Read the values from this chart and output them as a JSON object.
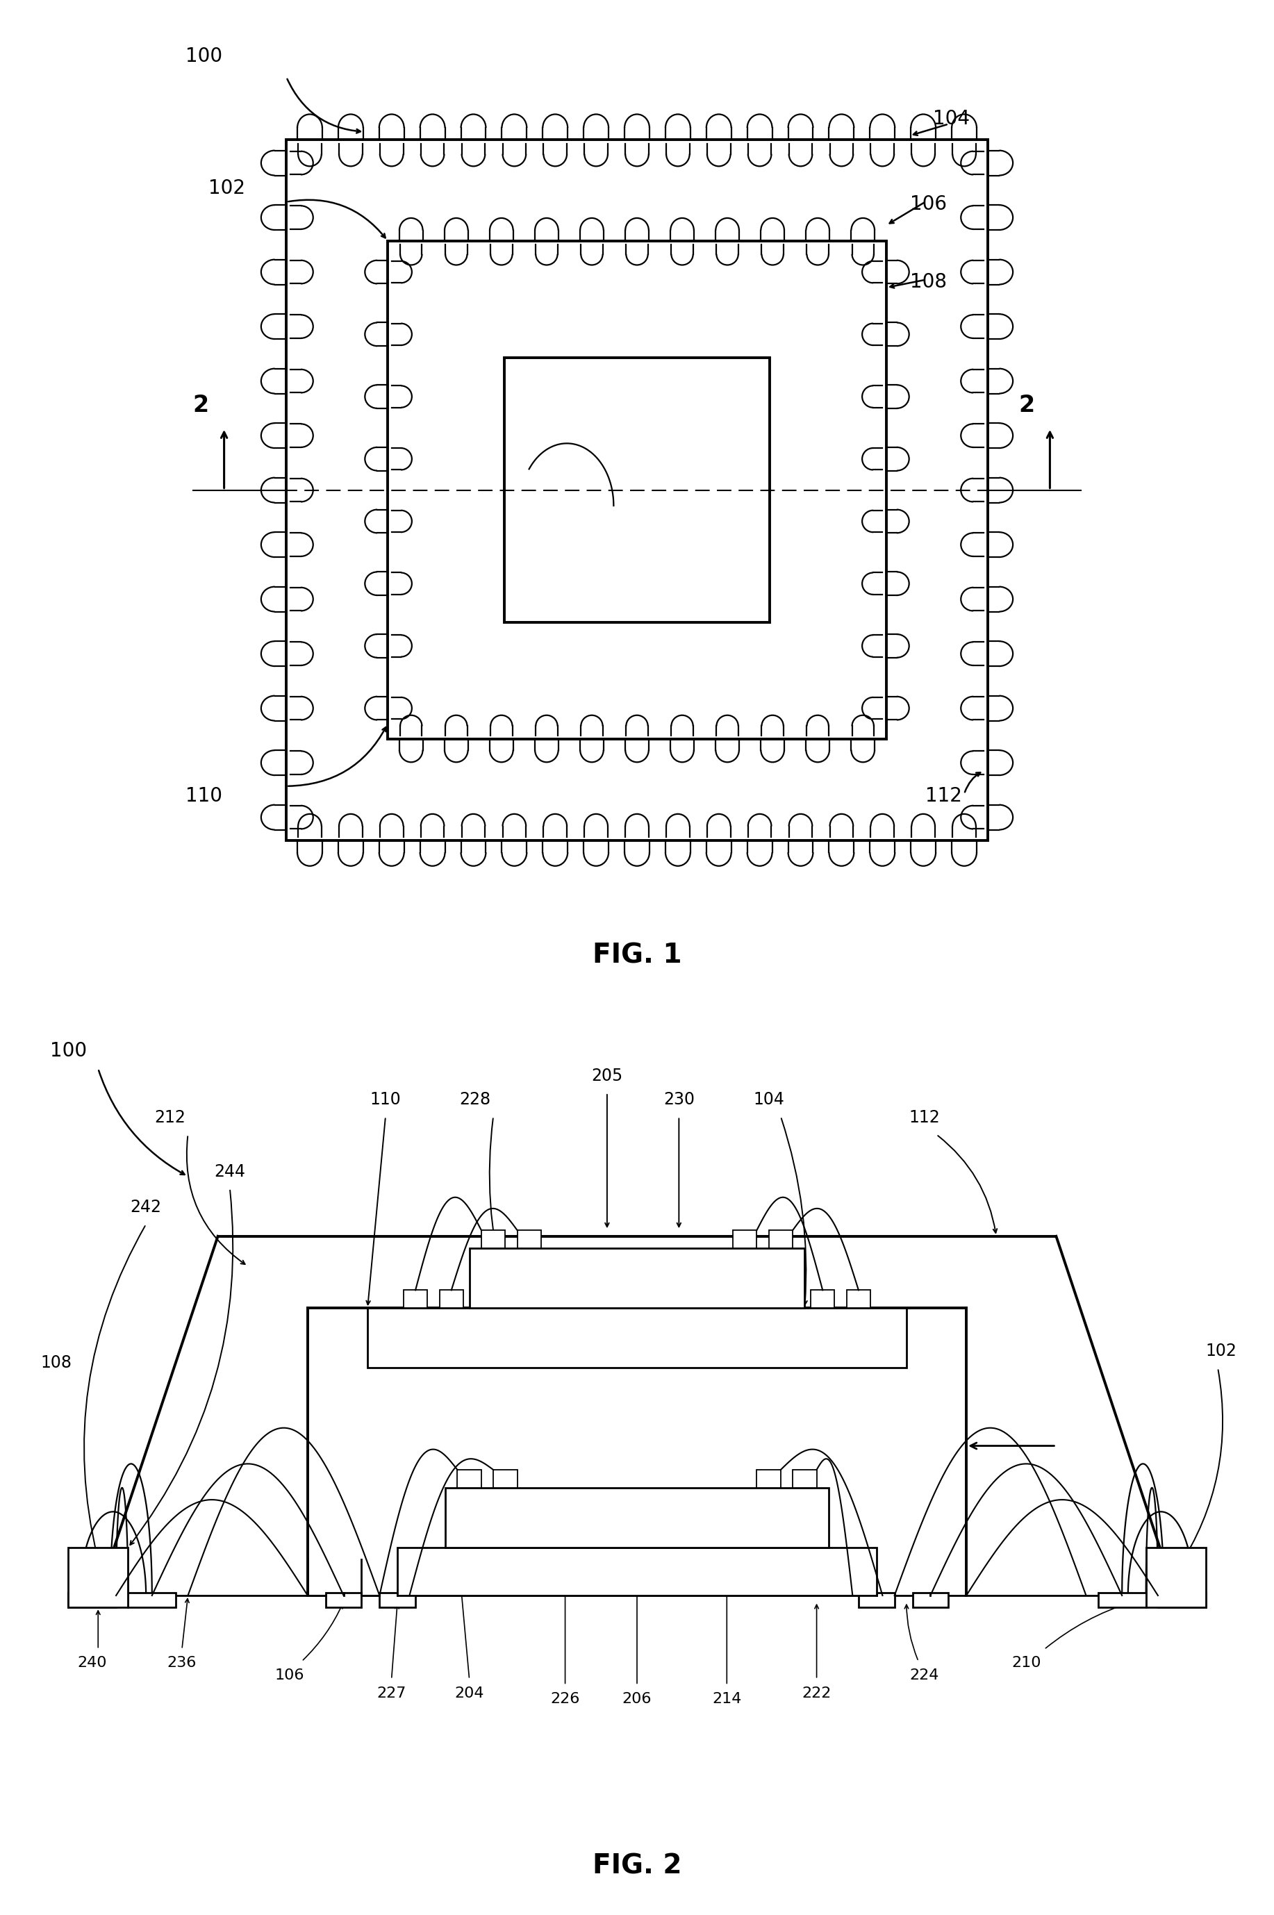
{
  "fig_width": 18.34,
  "fig_height": 27.57,
  "bg_color": "#ffffff",
  "lw_thick": 2.8,
  "lw_med": 2.0,
  "lw_thin": 1.6,
  "fig1_title": "FIG. 1",
  "fig2_title": "FIG. 2"
}
